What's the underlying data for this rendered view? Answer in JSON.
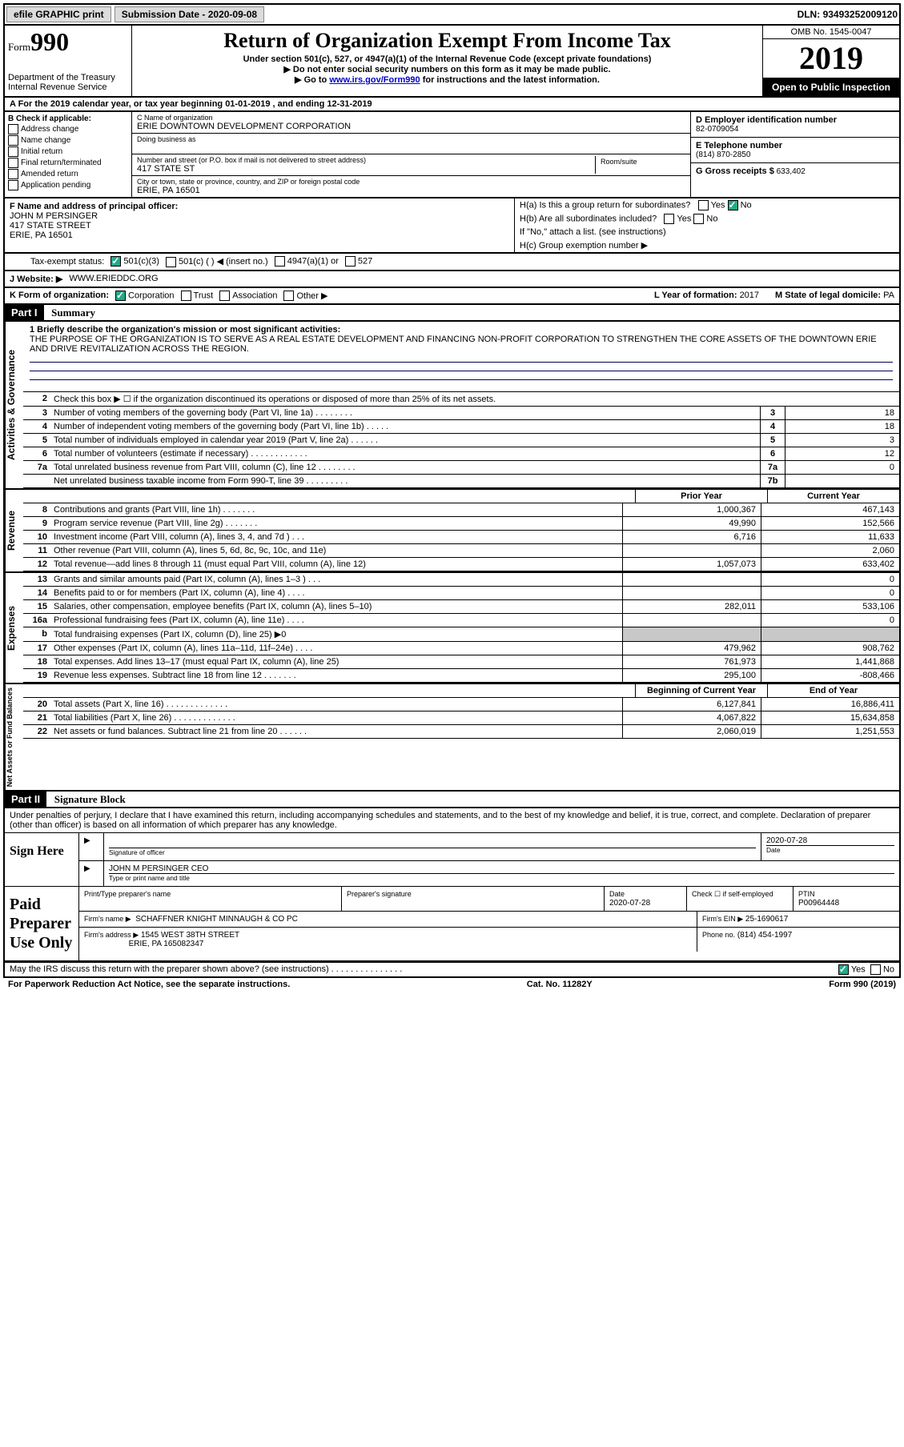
{
  "top": {
    "efile": "efile GRAPHIC print",
    "submission_label": "Submission Date - ",
    "submission_date": "2020-09-08",
    "dln_label": "DLN: ",
    "dln": "93493252009120"
  },
  "header": {
    "form_prefix": "Form",
    "form_number": "990",
    "dept": "Department of the Treasury\nInternal Revenue Service",
    "title": "Return of Organization Exempt From Income Tax",
    "sub1": "Under section 501(c), 527, or 4947(a)(1) of the Internal Revenue Code (except private foundations)",
    "sub2": "▶ Do not enter social security numbers on this form as it may be made public.",
    "sub3_pre": "▶ Go to ",
    "sub3_link": "www.irs.gov/Form990",
    "sub3_post": " for instructions and the latest information.",
    "omb": "OMB No. 1545-0047",
    "year": "2019",
    "inspection": "Open to Public Inspection"
  },
  "period": "A For the 2019 calendar year, or tax year beginning 01-01-2019   , and ending 12-31-2019",
  "boxB": {
    "label": "B Check if applicable:",
    "items": [
      "Address change",
      "Name change",
      "Initial return",
      "Final return/terminated",
      "Amended return",
      "Application pending"
    ]
  },
  "boxC": {
    "name_label": "C Name of organization",
    "name": "ERIE DOWNTOWN DEVELOPMENT CORPORATION",
    "dba_label": "Doing business as",
    "addr_label": "Number and street (or P.O. box if mail is not delivered to street address)",
    "room_label": "Room/suite",
    "addr": "417 STATE ST",
    "city_label": "City or town, state or province, country, and ZIP or foreign postal code",
    "city": "ERIE, PA  16501"
  },
  "boxD": {
    "label": "D Employer identification number",
    "val": "82-0709054"
  },
  "boxE": {
    "label": "E Telephone number",
    "val": "(814) 870-2850"
  },
  "boxG": {
    "label": "G Gross receipts $",
    "val": "633,402"
  },
  "boxF": {
    "label": "F  Name and address of principal officer:",
    "name": "JOHN M PERSINGER",
    "addr1": "417 STATE STREET",
    "addr2": "ERIE, PA  16501"
  },
  "boxH": {
    "ha": "H(a)  Is this a group return for subordinates?",
    "hb": "H(b)  Are all subordinates included?",
    "hb_note": "If \"No,\" attach a list. (see instructions)",
    "hc": "H(c)  Group exemption number ▶"
  },
  "status": {
    "label": "Tax-exempt status:",
    "opt1": "501(c)(3)",
    "opt2": "501(c) (  ) ◀ (insert no.)",
    "opt3": "4947(a)(1) or",
    "opt4": "527"
  },
  "website": {
    "label": "J   Website: ▶",
    "val": "WWW.ERIEDDC.ORG"
  },
  "orgform": {
    "label": "K Form of organization:",
    "opts": [
      "Corporation",
      "Trust",
      "Association",
      "Other ▶"
    ],
    "L_label": "L Year of formation:",
    "L_val": "2017",
    "M_label": "M State of legal domicile:",
    "M_val": "PA"
  },
  "part1": {
    "header": "Part I",
    "title": "Summary",
    "mission_label": "1  Briefly describe the organization's mission or most significant activities:",
    "mission": "THE PURPOSE OF THE ORGANIZATION IS TO SERVE AS A REAL ESTATE DEVELOPMENT AND FINANCING NON-PROFIT CORPORATION TO STRENGTHEN THE CORE ASSETS OF THE DOWNTOWN ERIE AND DRIVE REVITALIZATION ACROSS THE REGION.",
    "line2": "Check this box ▶ ☐  if the organization discontinued its operations or disposed of more than 25% of its net assets.",
    "gov_lines": [
      {
        "n": "3",
        "d": "Number of voting members of the governing body (Part VI, line 1a)   .    .    .    .    .    .    .    .",
        "box": "3",
        "v": "18"
      },
      {
        "n": "4",
        "d": "Number of independent voting members of the governing body (Part VI, line 1b)   .    .    .    .    .",
        "box": "4",
        "v": "18"
      },
      {
        "n": "5",
        "d": "Total number of individuals employed in calendar year 2019 (Part V, line 2a)   .    .    .    .    .    .",
        "box": "5",
        "v": "3"
      },
      {
        "n": "6",
        "d": "Total number of volunteers (estimate if necessary)    .    .    .    .    .    .    .    .    .    .    .    .",
        "box": "6",
        "v": "12"
      },
      {
        "n": "7a",
        "d": "Total unrelated business revenue from Part VIII, column (C), line 12   .    .    .    .    .    .    .    .",
        "box": "7a",
        "v": "0"
      },
      {
        "n": "",
        "d": "Net unrelated business taxable income from Form 990-T, line 39    .    .    .    .    .    .    .    .    .",
        "box": "7b",
        "v": ""
      }
    ],
    "col_py": "Prior Year",
    "col_cy": "Current Year",
    "rev_lines": [
      {
        "n": "8",
        "d": "Contributions and grants (Part VIII, line 1h)    .    .    .    .    .    .    .",
        "py": "1,000,367",
        "cy": "467,143"
      },
      {
        "n": "9",
        "d": "Program service revenue (Part VIII, line 2g)    .    .    .    .    .    .    .",
        "py": "49,990",
        "cy": "152,566"
      },
      {
        "n": "10",
        "d": "Investment income (Part VIII, column (A), lines 3, 4, and 7d )    .    .    .",
        "py": "6,716",
        "cy": "11,633"
      },
      {
        "n": "11",
        "d": "Other revenue (Part VIII, column (A), lines 5, 6d, 8c, 9c, 10c, and 11e)",
        "py": "",
        "cy": "2,060"
      },
      {
        "n": "12",
        "d": "Total revenue—add lines 8 through 11 (must equal Part VIII, column (A), line 12)",
        "py": "1,057,073",
        "cy": "633,402"
      }
    ],
    "exp_lines": [
      {
        "n": "13",
        "d": "Grants and similar amounts paid (Part IX, column (A), lines 1–3 )   .    .    .",
        "py": "",
        "cy": "0"
      },
      {
        "n": "14",
        "d": "Benefits paid to or for members (Part IX, column (A), line 4)    .    .    .    .",
        "py": "",
        "cy": "0"
      },
      {
        "n": "15",
        "d": "Salaries, other compensation, employee benefits (Part IX, column (A), lines 5–10)",
        "py": "282,011",
        "cy": "533,106"
      },
      {
        "n": "16a",
        "d": "Professional fundraising fees (Part IX, column (A), line 11e)    .    .    .    .",
        "py": "",
        "cy": "0"
      },
      {
        "n": "b",
        "d": "Total fundraising expenses (Part IX, column (D), line 25) ▶0",
        "py": "shaded",
        "cy": "shaded"
      },
      {
        "n": "17",
        "d": "Other expenses (Part IX, column (A), lines 11a–11d, 11f–24e)    .    .    .    .",
        "py": "479,962",
        "cy": "908,762"
      },
      {
        "n": "18",
        "d": "Total expenses. Add lines 13–17 (must equal Part IX, column (A), line 25)",
        "py": "761,973",
        "cy": "1,441,868"
      },
      {
        "n": "19",
        "d": "Revenue less expenses. Subtract line 18 from line 12 .    .    .    .    .    .    .",
        "py": "295,100",
        "cy": "-808,466"
      }
    ],
    "na_header_py": "Beginning of Current Year",
    "na_header_cy": "End of Year",
    "na_lines": [
      {
        "n": "20",
        "d": "Total assets (Part X, line 16) .    .    .    .    .    .    .    .    .    .    .    .    .",
        "py": "6,127,841",
        "cy": "16,886,411"
      },
      {
        "n": "21",
        "d": "Total liabilities (Part X, line 26) .    .    .    .    .    .    .    .    .    .    .    .    .",
        "py": "4,067,822",
        "cy": "15,634,858"
      },
      {
        "n": "22",
        "d": "Net assets or fund balances. Subtract line 21 from line 20 .    .    .    .    .    .",
        "py": "2,060,019",
        "cy": "1,251,553"
      }
    ]
  },
  "part2": {
    "header": "Part II",
    "title": "Signature Block",
    "penalties": "Under penalties of perjury, I declare that I have examined this return, including accompanying schedules and statements, and to the best of my knowledge and belief, it is true, correct, and complete. Declaration of preparer (other than officer) is based on all information of which preparer has any knowledge.",
    "sign_here": "Sign Here",
    "sig_of_officer": "Signature of officer",
    "sig_date": "2020-07-28",
    "sig_date_label": "Date",
    "officer_name": "JOHN M PERSINGER  CEO",
    "officer_label": "Type or print name and title",
    "paid": "Paid Preparer Use Only",
    "prep_name_label": "Print/Type preparer's name",
    "prep_sig_label": "Preparer's signature",
    "prep_date_label": "Date",
    "prep_date": "2020-07-28",
    "self_emp": "Check ☐ if self-employed",
    "ptin_label": "PTIN",
    "ptin": "P00964448",
    "firm_name_label": "Firm's name    ▶",
    "firm_name": "SCHAFFNER KNIGHT MINNAUGH & CO PC",
    "firm_ein_label": "Firm's EIN ▶",
    "firm_ein": "25-1690617",
    "firm_addr_label": "Firm's address ▶",
    "firm_addr1": "1545 WEST 38TH STREET",
    "firm_addr2": "ERIE, PA  165082347",
    "phone_label": "Phone no.",
    "phone": "(814) 454-1997",
    "discuss": "May the IRS discuss this return with the preparer shown above? (see instructions)   .    .    .    .    .    .    .    .    .    .    .    .    .    .    .",
    "paperwork": "For Paperwork Reduction Act Notice, see the separate instructions.",
    "cat": "Cat. No. 11282Y",
    "form_foot": "Form 990 (2019)"
  },
  "sections": {
    "gov": "Activities & Governance",
    "rev": "Revenue",
    "exp": "Expenses",
    "na": "Net Assets or Fund Balances"
  }
}
